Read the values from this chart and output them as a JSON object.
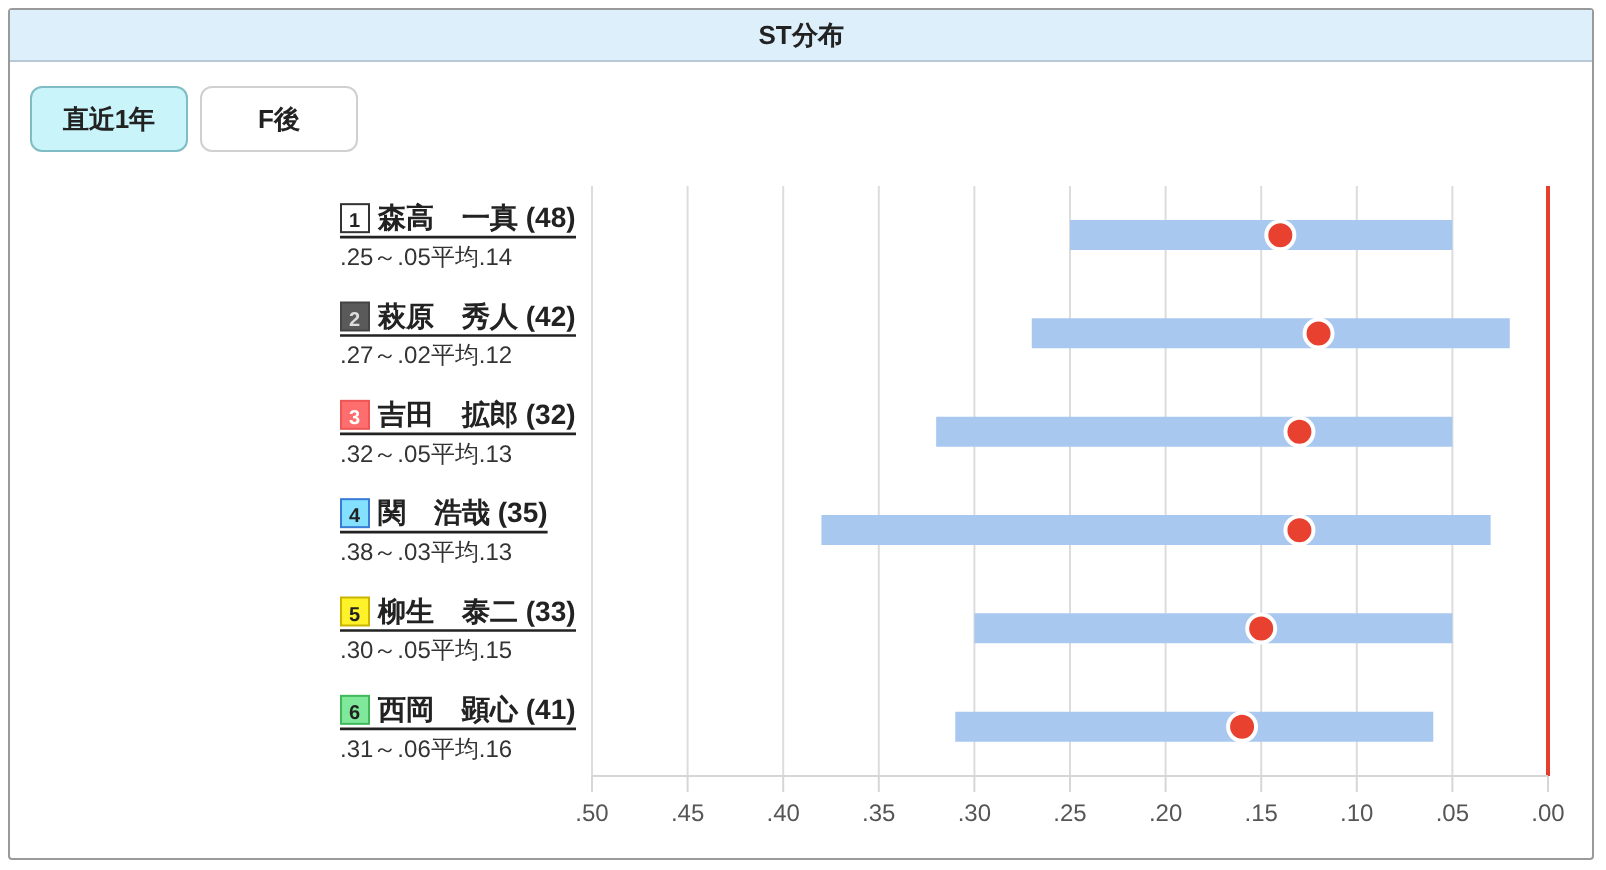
{
  "chart_data": {
    "type": "bar",
    "title": "ST分布",
    "orientation": "horizontal",
    "categories": [
      "1 森高　一真 (48)",
      "2 萩原　秀人 (42)",
      "3 吉田　拡郎 (32)",
      "4 関　浩哉 (35)",
      "5 柳生　泰二 (33)",
      "6 西岡　顕心 (41)"
    ],
    "series": [
      {
        "type": "bar",
        "color": "#a8c8f0",
        "base": [
          0.05,
          0.02,
          0.05,
          0.03,
          0.05,
          0.06
        ],
        "values": [
          0.2,
          0.25,
          0.27,
          0.35,
          0.25,
          0.25
        ],
        "value_labels": [
          ".25～.05平均.14",
          ".27～.02平均.12",
          ".32～.05平均.13",
          ".38～.03平均.13",
          ".30～.05平均.15",
          ".31～.06平均.16"
        ]
      },
      {
        "type": "scatter",
        "color": "#e8412f",
        "x": [
          "1 森高　一真 (48)",
          "2 萩原　秀人 (42)",
          "3 吉田　拡郎 (32)",
          "4 関　浩哉 (35)",
          "5 柳生　泰二 (33)",
          "6 西岡　顕心 (41)"
        ],
        "values": [
          0.14,
          0.12,
          0.13,
          0.13,
          0.15,
          0.16
        ]
      }
    ],
    "xlim": [
      0.5,
      0
    ],
    "xticks": [
      {
        "value": 0.5,
        "label": ".50"
      },
      {
        "value": 0.45,
        "label": ".45"
      },
      {
        "value": 0.4,
        "label": ".40"
      },
      {
        "value": 0.35,
        "label": ".35"
      },
      {
        "value": 0.3,
        "label": ".30"
      },
      {
        "value": 0.25,
        "label": ".25"
      },
      {
        "value": 0.2,
        "label": ".20"
      },
      {
        "value": 0.15,
        "label": ".15"
      },
      {
        "value": 0.1,
        "label": ".10"
      },
      {
        "value": 0.05,
        "label": ".05"
      },
      {
        "value": 0,
        "label": ".00"
      }
    ],
    "grid": "x",
    "marker": "circle",
    "ref_lines": [
      {
        "axis": "x",
        "value": 0,
        "color": "#e53e2e"
      }
    ],
    "annotations": [
      "直近1年",
      "F後"
    ]
  }
}
